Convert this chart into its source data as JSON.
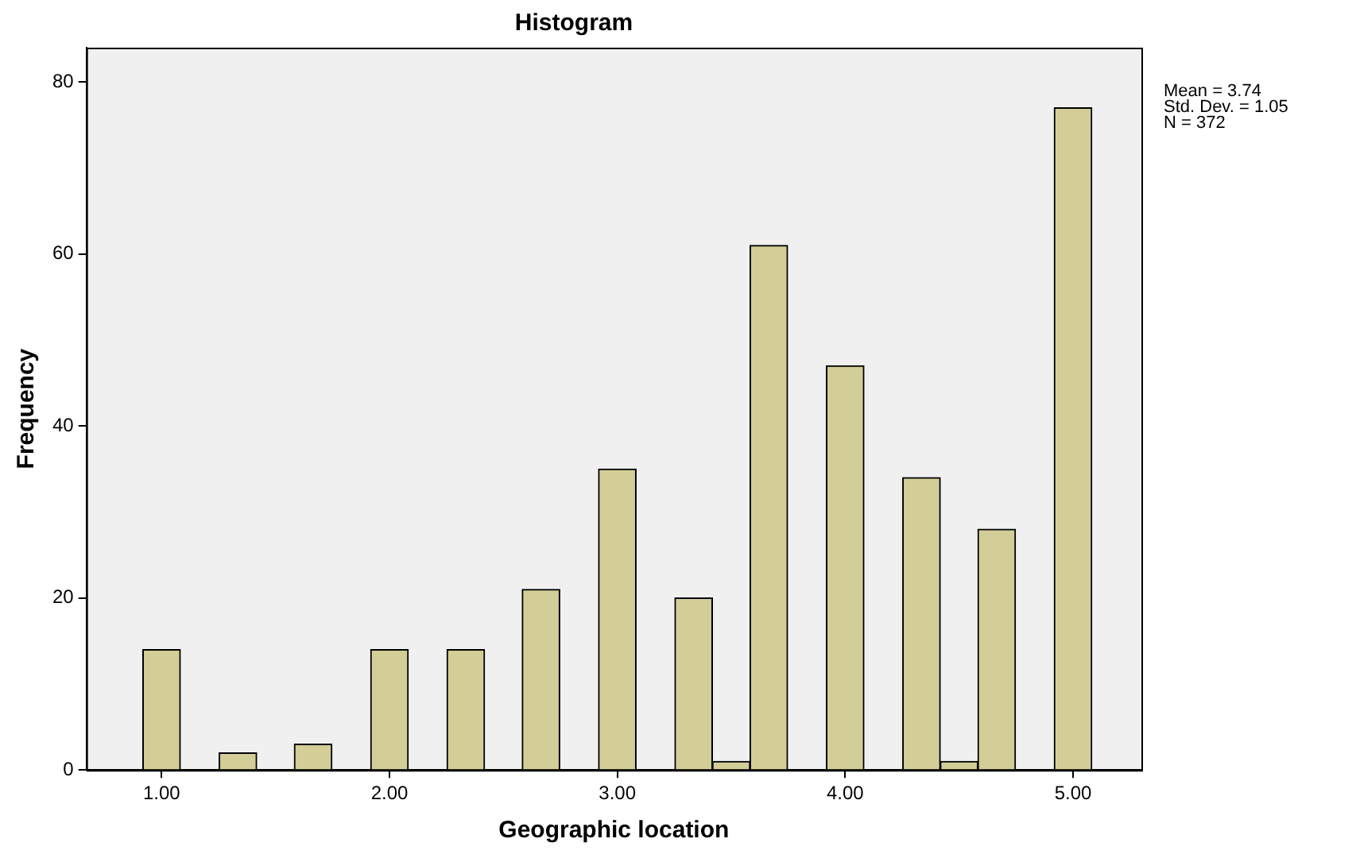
{
  "chart_data": {
    "type": "histogram",
    "title": "Histogram",
    "xlabel": "Geographic location",
    "ylabel": "Frequency",
    "bins": [
      0.92,
      1.08,
      1.25,
      1.42,
      1.58,
      1.75,
      1.92,
      2.08,
      2.25,
      2.42,
      2.58,
      2.75,
      2.92,
      3.08,
      3.25,
      3.42,
      3.58,
      3.75,
      3.92,
      4.08,
      4.25,
      4.42,
      4.58,
      4.75,
      4.92,
      5.08
    ],
    "values": [
      14,
      0,
      2,
      0,
      3,
      0,
      14,
      0,
      14,
      0,
      21,
      0,
      35,
      0,
      20,
      1,
      61,
      0,
      47,
      0,
      34,
      1,
      28,
      0,
      77
    ],
    "color": "#d3ce97",
    "xlim": [
      0.67,
      5.3
    ],
    "xticks": [
      {
        "value": 1,
        "label": "1.00"
      },
      {
        "value": 2,
        "label": "2.00"
      },
      {
        "value": 3,
        "label": "3.00"
      },
      {
        "value": 4,
        "label": "4.00"
      },
      {
        "value": 5,
        "label": "5.00"
      }
    ],
    "ylim": [
      0,
      84
    ],
    "yticks": [
      0,
      20,
      40,
      60,
      80
    ],
    "grid": false,
    "annotations": [
      "Mean = 3.74",
      "Std. Dev. = 1.05",
      "N = 372"
    ]
  }
}
